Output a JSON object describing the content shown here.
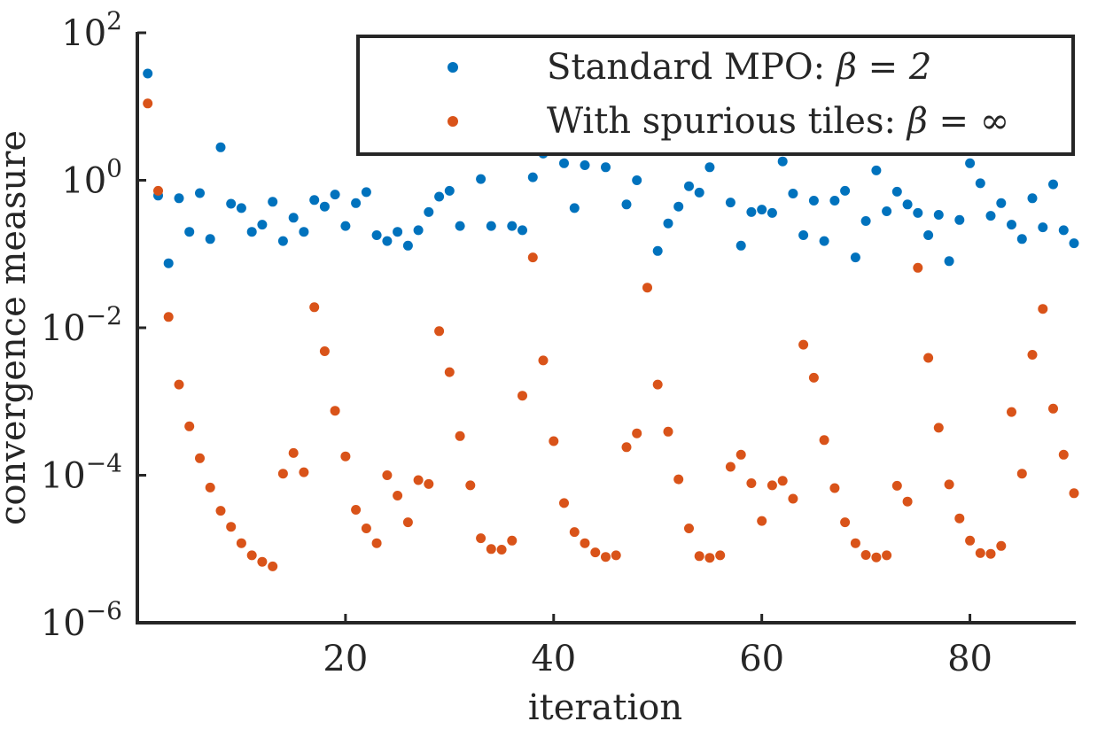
{
  "chart_data": {
    "type": "scatter",
    "title": "",
    "xlabel": "iteration",
    "ylabel": "convergence measure",
    "xlim": [
      0,
      90
    ],
    "ylim": [
      1e-06,
      100
    ],
    "yscale": "log",
    "grid": false,
    "legend_position": "top-right",
    "x_ticks": [
      {
        "value": 20,
        "label": "20"
      },
      {
        "value": 40,
        "label": "40"
      },
      {
        "value": 60,
        "label": "60"
      },
      {
        "value": 80,
        "label": "80"
      }
    ],
    "y_ticks": [
      {
        "value": 100,
        "base": "10",
        "exp": "2"
      },
      {
        "value": 1,
        "base": "10",
        "exp": "0"
      },
      {
        "value": 0.01,
        "base": "10",
        "exp": "−2"
      },
      {
        "value": 0.0001,
        "base": "10",
        "exp": "−4"
      },
      {
        "value": 1e-06,
        "base": "10",
        "exp": "−6"
      }
    ],
    "series": [
      {
        "name": "Standard MPO: β = 2",
        "legend_lead": "Standard MPO: ",
        "legend_math": "β = 2",
        "color": "#0072BD",
        "x": [
          1,
          2,
          3,
          4,
          5,
          6,
          7,
          8,
          9,
          10,
          11,
          12,
          13,
          14,
          15,
          16,
          17,
          18,
          19,
          20,
          21,
          22,
          23,
          24,
          25,
          26,
          27,
          28,
          29,
          30,
          31,
          33,
          34,
          36,
          37,
          38,
          39,
          41,
          42,
          43,
          45,
          47,
          48,
          50,
          51,
          52,
          53,
          54,
          55,
          57,
          58,
          59,
          60,
          61,
          62,
          63,
          64,
          65,
          66,
          67,
          68,
          69,
          70,
          71,
          72,
          73,
          74,
          75,
          76,
          77,
          78,
          79,
          80,
          81,
          82,
          83,
          84,
          85,
          86,
          87,
          88,
          89,
          90
        ],
        "y": [
          28,
          0.62,
          0.075,
          0.57,
          0.2,
          0.67,
          0.16,
          2.8,
          0.48,
          0.42,
          0.2,
          0.25,
          0.51,
          0.15,
          0.31,
          0.2,
          0.54,
          0.44,
          0.64,
          0.24,
          0.49,
          0.69,
          0.18,
          0.15,
          0.2,
          0.13,
          0.21,
          0.37,
          0.6,
          0.72,
          0.24,
          1.04,
          0.24,
          0.24,
          0.21,
          1.1,
          2.3,
          1.7,
          0.42,
          1.6,
          1.5,
          0.47,
          1.0,
          0.11,
          0.26,
          0.44,
          0.83,
          0.68,
          1.5,
          0.5,
          0.13,
          0.37,
          0.4,
          0.36,
          1.8,
          0.66,
          0.18,
          0.53,
          0.15,
          0.53,
          0.72,
          0.09,
          0.28,
          1.36,
          0.38,
          0.7,
          0.47,
          0.36,
          0.18,
          0.34,
          0.08,
          0.29,
          1.7,
          0.91,
          0.33,
          0.49,
          0.25,
          0.16,
          0.57,
          0.23,
          0.88,
          0.21,
          0.14
        ]
      },
      {
        "name": "With spurious tiles: β = ∞",
        "legend_lead": "With spurious tiles: ",
        "legend_math": "β = ∞",
        "color": "#D95319",
        "x": [
          1,
          2,
          3,
          4,
          5,
          6,
          7,
          8,
          9,
          10,
          11,
          12,
          13,
          14,
          15,
          16,
          17,
          18,
          19,
          20,
          21,
          22,
          23,
          24,
          25,
          26,
          27,
          28,
          29,
          30,
          31,
          32,
          33,
          34,
          35,
          36,
          37,
          38,
          39,
          40,
          41,
          42,
          43,
          44,
          45,
          46,
          47,
          48,
          49,
          50,
          51,
          52,
          53,
          54,
          55,
          56,
          57,
          58,
          59,
          60,
          61,
          62,
          63,
          64,
          65,
          66,
          67,
          68,
          69,
          70,
          71,
          72,
          73,
          74,
          75,
          76,
          77,
          78,
          79,
          80,
          81,
          82,
          83,
          84,
          85,
          86,
          87,
          88,
          89,
          90
        ],
        "y": [
          11,
          0.72,
          0.014,
          0.0017,
          0.00046,
          0.00017,
          6.8e-05,
          3.3e-05,
          2e-05,
          1.2e-05,
          8.2e-06,
          6.7e-06,
          5.8e-06,
          0.000105,
          0.0002,
          0.00011,
          0.019,
          0.0048,
          0.00075,
          0.00018,
          3.4e-05,
          1.9e-05,
          1.2e-05,
          0.0001,
          5.3e-05,
          2.3e-05,
          8.6e-05,
          7.6e-05,
          0.009,
          0.0025,
          0.00034,
          7.3e-05,
          1.4e-05,
          1e-05,
          9.8e-06,
          1.3e-05,
          0.0012,
          0.09,
          0.0036,
          0.00029,
          4.2e-05,
          1.7e-05,
          1.2e-05,
          9e-06,
          7.8e-06,
          8.2e-06,
          0.00024,
          0.00037,
          0.035,
          0.0017,
          0.00039,
          8.8e-05,
          1.9e-05,
          8e-06,
          7.6e-06,
          8.2e-06,
          0.00013,
          0.00019,
          7.8e-05,
          2.4e-05,
          7.3e-05,
          8.4e-05,
          4.8e-05,
          0.0059,
          0.0021,
          0.0003,
          6.7e-05,
          2.3e-05,
          1.2e-05,
          8.3e-06,
          7.7e-06,
          8.2e-06,
          7.2e-05,
          4.4e-05,
          0.065,
          0.0039,
          0.00044,
          7.5e-05,
          2.6e-05,
          1.3e-05,
          8.8e-06,
          8.6e-06,
          1.1e-05,
          0.00072,
          0.000105,
          0.0043,
          0.018,
          0.0008,
          0.00019,
          5.7e-05
        ]
      }
    ]
  }
}
